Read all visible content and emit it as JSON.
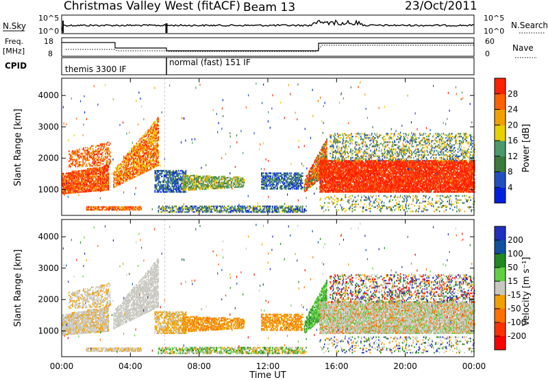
{
  "header": {
    "radar": "Christmas Valley West (fitACF)",
    "beam": "Beam 13",
    "date": "23/Oct/2011"
  },
  "noise_panel": {
    "left_label": "N.Sky",
    "left_ticks": [
      "10^5",
      "10^0"
    ],
    "right_ticks": [
      "10^5",
      "10^0"
    ],
    "right_label": "N.Search"
  },
  "freq_panel": {
    "left_label_1": "Freq.",
    "left_label_2": "[MHz]",
    "left_ticks": [
      "18",
      "8"
    ],
    "right_ticks": [
      "60",
      "0"
    ],
    "right_label": "Nave"
  },
  "cpid_panel": {
    "label": "CPID",
    "modes": [
      {
        "name": "themis 3300 IF",
        "start_hour": 0,
        "end_hour": 6.0
      },
      {
        "name": "normal (fast) 151 IF",
        "start_hour": 6.0,
        "end_hour": 24
      }
    ]
  },
  "colors": {
    "power_scale": [
      "#0020e0",
      "#2050c0",
      "#3a7a3a",
      "#4a9a6a",
      "#e8d000",
      "#f0a000",
      "#ff6000",
      "#ff2000"
    ],
    "velocity_scale": [
      "#2030c0",
      "#1050a0",
      "#208a20",
      "#60d040",
      "#c8c8c0",
      "#f0a000",
      "#ff7000",
      "#ff3000",
      "#ff0000"
    ]
  },
  "chart_data": [
    {
      "type": "heatmap",
      "name": "power",
      "ylabel": "Slant Range [km]",
      "xlabel": "",
      "xlim_hours": [
        0,
        24
      ],
      "ylim": [
        180,
        4550
      ],
      "yticks": [
        "1000",
        "2000",
        "3000",
        "4000"
      ],
      "colorbar": {
        "label": "Power [dB]",
        "ticks": [
          "4",
          "8",
          "12",
          "16",
          "20",
          "24",
          "28"
        ]
      }
    },
    {
      "type": "heatmap",
      "name": "velocity",
      "ylabel": "Slant Range [km]",
      "xlabel": "Time UT",
      "xlim_hours": [
        0,
        24
      ],
      "ylim": [
        180,
        4550
      ],
      "yticks": [
        "1000",
        "2000",
        "3000",
        "4000"
      ],
      "xticks": [
        "00:00",
        "04:00",
        "08:00",
        "12:00",
        "16:00",
        "20:00",
        "00:00"
      ],
      "colorbar": {
        "label": "Velocity [m s⁻¹]",
        "ticks": [
          "200",
          "100",
          "50",
          "15",
          "-15",
          "-50",
          "-100",
          "-200"
        ]
      }
    }
  ]
}
